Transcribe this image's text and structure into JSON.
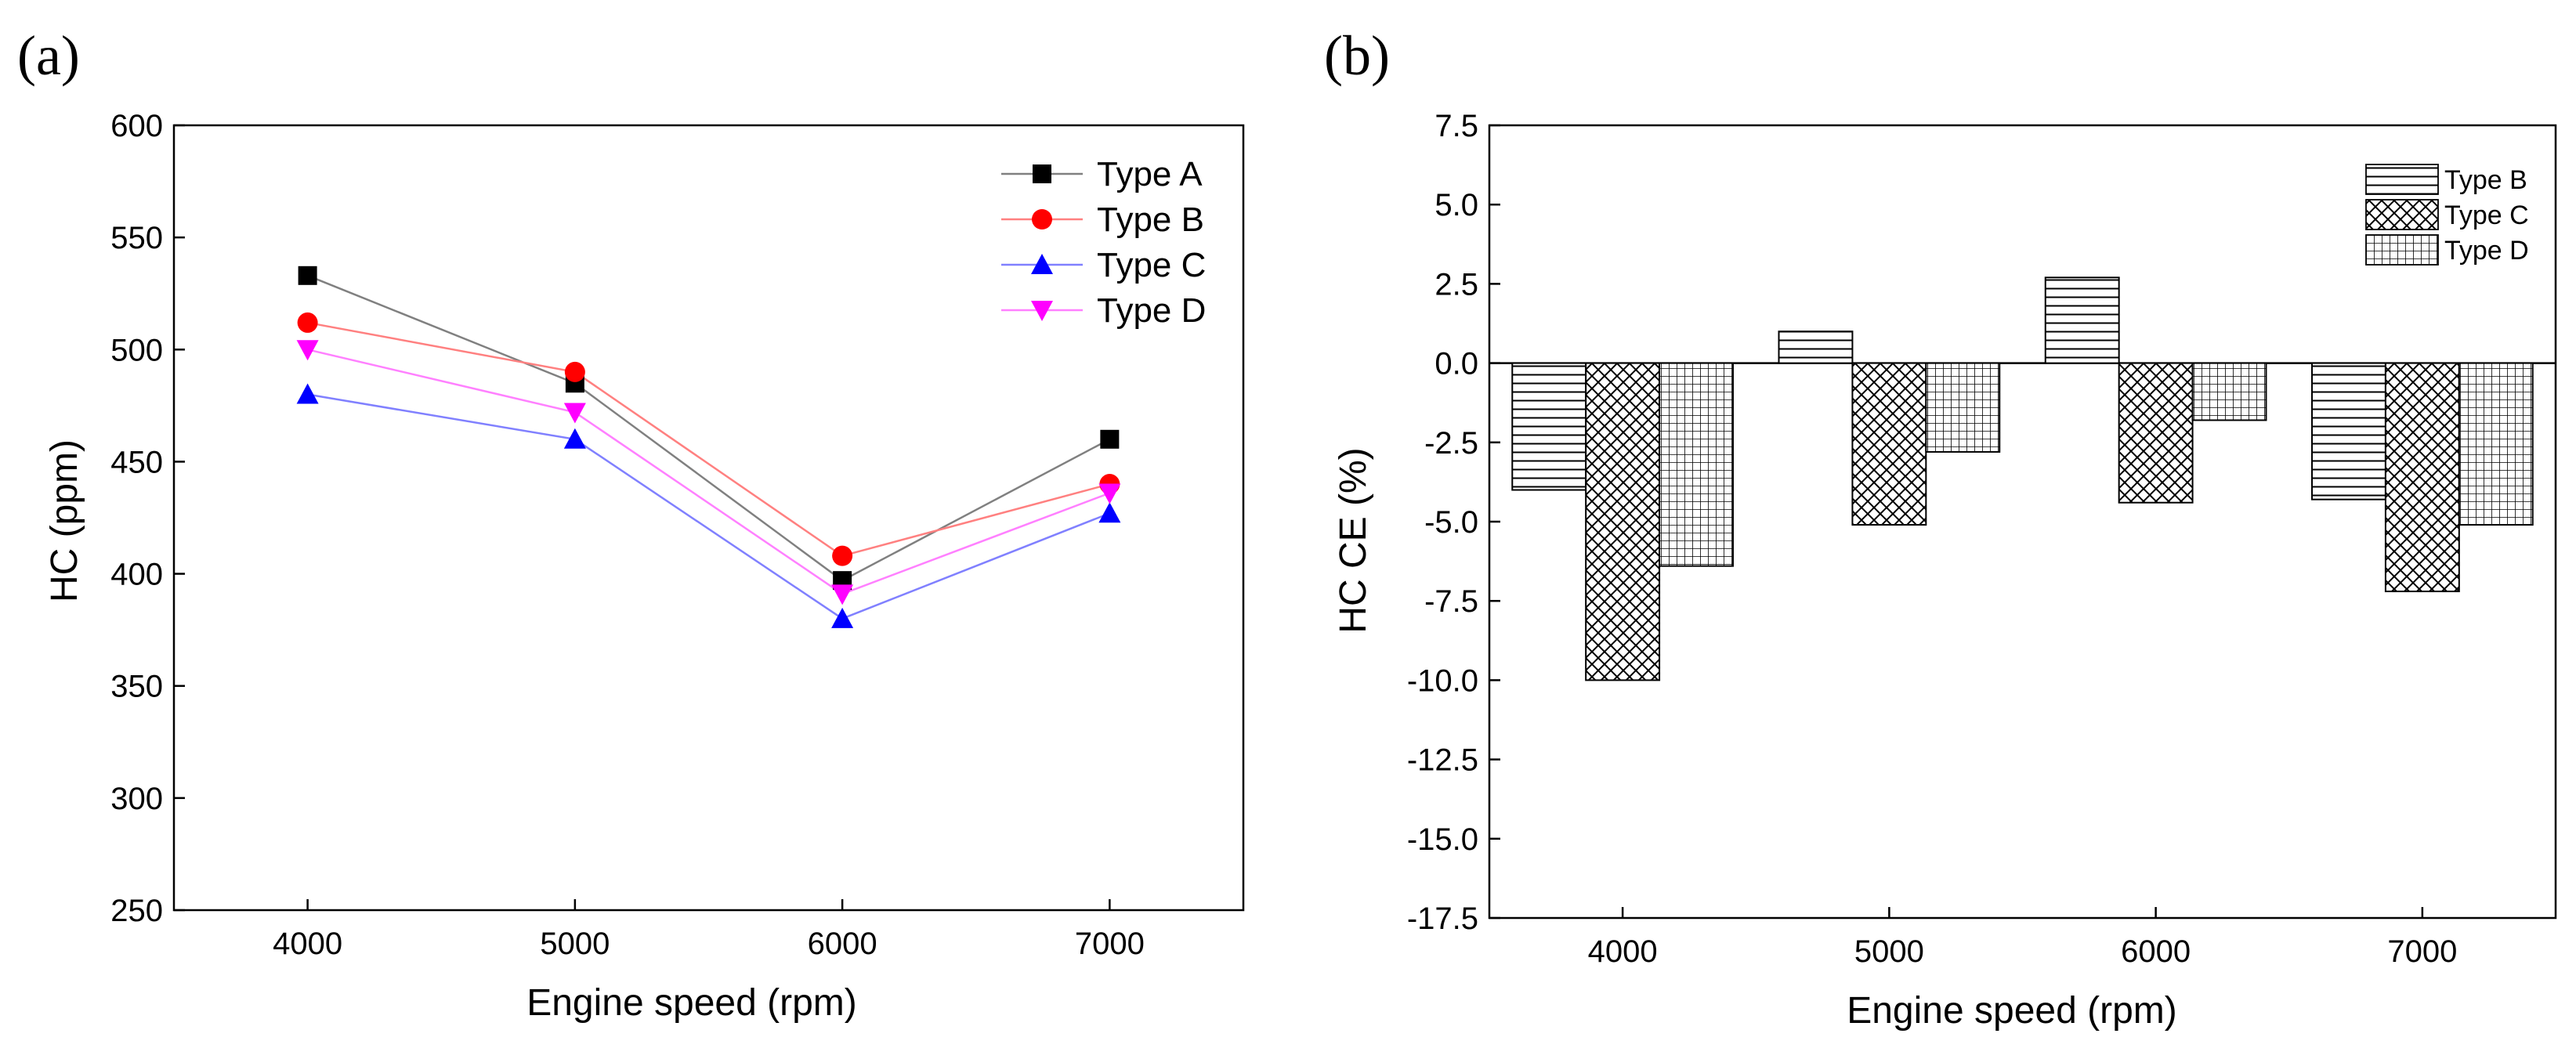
{
  "panels": [
    {
      "label": "(a)"
    },
    {
      "label": "(b)"
    }
  ],
  "chart_data": [
    {
      "type": "line",
      "title": "",
      "xlabel": "Engine speed (rpm)",
      "ylabel": "HC (ppm)",
      "x": [
        4000,
        5000,
        6000,
        7000
      ],
      "x_tick_labels": [
        "4000",
        "5000",
        "6000",
        "7000"
      ],
      "xlim": [
        3500,
        7500
      ],
      "ylim": [
        250,
        600
      ],
      "y_ticks": [
        250,
        300,
        350,
        400,
        450,
        500,
        550,
        600
      ],
      "y_tick_labels": [
        "250",
        "300",
        "350",
        "400",
        "450",
        "500",
        "550",
        "600"
      ],
      "grid": false,
      "legend_position": "top-right",
      "series": [
        {
          "name": "Type A",
          "values": [
            533,
            485,
            397,
            460
          ],
          "color": "#000000",
          "line_color": "#808080",
          "marker": "square"
        },
        {
          "name": "Type B",
          "values": [
            512,
            490,
            408,
            440
          ],
          "color": "#ff0000",
          "line_color": "#ff8080",
          "marker": "circle"
        },
        {
          "name": "Type C",
          "values": [
            480,
            460,
            380,
            427
          ],
          "color": "#0000ff",
          "line_color": "#8080ff",
          "marker": "triangle-up"
        },
        {
          "name": "Type D",
          "values": [
            500,
            472,
            391,
            436
          ],
          "color": "#ff00ff",
          "line_color": "#ff80ff",
          "marker": "triangle-down"
        }
      ]
    },
    {
      "type": "bar",
      "title": "",
      "xlabel": "Engine speed (rpm)",
      "ylabel": "HC CE (%)",
      "categories": [
        "4000",
        "5000",
        "6000",
        "7000"
      ],
      "ylim": [
        -17.5,
        7.5
      ],
      "y_ticks": [
        -17.5,
        -15.0,
        -12.5,
        -10.0,
        -7.5,
        -5.0,
        -2.5,
        0.0,
        2.5,
        5.0,
        7.5
      ],
      "y_tick_labels": [
        "-17.5",
        "-15.0",
        "-12.5",
        "-10.0",
        "-7.5",
        "-5.0",
        "-2.5",
        "0.0",
        "2.5",
        "5.0",
        "7.5"
      ],
      "grid": false,
      "legend_position": "top-right",
      "series": [
        {
          "name": "Type B",
          "values": [
            -4.0,
            1.0,
            2.7,
            -4.3
          ],
          "pattern": "horizontal-lines"
        },
        {
          "name": "Type C",
          "values": [
            -10.0,
            -5.1,
            -4.4,
            -7.2
          ],
          "pattern": "crosshatch"
        },
        {
          "name": "Type D",
          "values": [
            -6.4,
            -2.8,
            -1.8,
            -5.1
          ],
          "pattern": "grid"
        }
      ]
    }
  ]
}
